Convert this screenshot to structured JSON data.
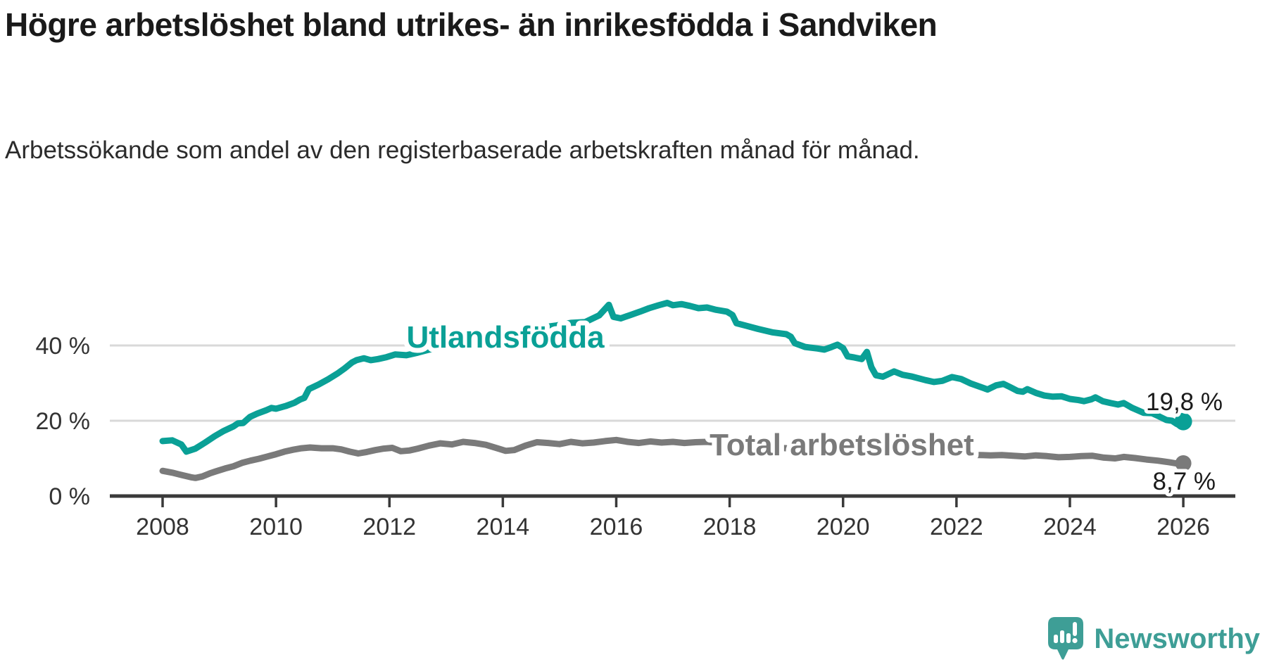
{
  "header": {
    "title": "Högre arbetslöshet bland utrikes- än inrikesfödda i Sandviken",
    "subtitle": "Arbetssökande som andel av den registerbaserade arbetskraften månad för månad."
  },
  "colors": {
    "background": "#FFFFFF",
    "accent_teal": "#0AA096",
    "series_gray": "#7A7A7A",
    "gridline": "#D9D9D9",
    "axis": "#3A3A3A",
    "text_dark": "#1A1A1A",
    "logo_teal": "#3E9E96"
  },
  "chart_data": {
    "type": "line",
    "title": "Högre arbetslöshet bland utrikes- än inrikesfödda i Sandviken",
    "subtitle": "Arbetssökande som andel av den registerbaserade arbetskraften månad för månad.",
    "xlabel": "",
    "ylabel": "",
    "x_axis": {
      "ticks": [
        2008,
        2010,
        2012,
        2014,
        2016,
        2018,
        2020,
        2022,
        2024,
        2026
      ],
      "tick_labels": [
        "2008",
        "2010",
        "2012",
        "2014",
        "2016",
        "2018",
        "2020",
        "2022",
        "2024",
        "2026"
      ],
      "range": [
        2007.1,
        2026.9
      ]
    },
    "y_axis": {
      "ticks": [
        0,
        20,
        40
      ],
      "tick_labels": [
        "0 %",
        "20 %",
        "40 %"
      ],
      "gridlines": [
        20,
        40
      ],
      "range": [
        0,
        56
      ],
      "unit": "%"
    },
    "legend_position": "inline-labels",
    "grid": "horizontal-only",
    "series": [
      {
        "name": "Utlandsfödda",
        "color": "#0AA096",
        "end_value": 19.8,
        "end_label": "19,8 %",
        "points": [
          [
            2008.0,
            14.6
          ],
          [
            2008.17,
            14.8
          ],
          [
            2008.33,
            13.7
          ],
          [
            2008.42,
            11.8
          ],
          [
            2008.58,
            12.6
          ],
          [
            2008.75,
            14.2
          ],
          [
            2008.92,
            15.9
          ],
          [
            2009.08,
            17.3
          ],
          [
            2009.25,
            18.5
          ],
          [
            2009.33,
            19.3
          ],
          [
            2009.42,
            19.4
          ],
          [
            2009.54,
            21.0
          ],
          [
            2009.67,
            21.9
          ],
          [
            2009.83,
            22.8
          ],
          [
            2009.92,
            23.4
          ],
          [
            2010.0,
            23.2
          ],
          [
            2010.17,
            23.9
          ],
          [
            2010.33,
            24.8
          ],
          [
            2010.42,
            25.6
          ],
          [
            2010.5,
            26.1
          ],
          [
            2010.58,
            28.4
          ],
          [
            2010.75,
            29.6
          ],
          [
            2010.92,
            31.0
          ],
          [
            2011.08,
            32.5
          ],
          [
            2011.21,
            33.9
          ],
          [
            2011.34,
            35.5
          ],
          [
            2011.42,
            36.1
          ],
          [
            2011.55,
            36.6
          ],
          [
            2011.67,
            36.1
          ],
          [
            2011.8,
            36.4
          ],
          [
            2011.95,
            36.9
          ],
          [
            2012.1,
            37.6
          ],
          [
            2012.3,
            37.4
          ],
          [
            2012.5,
            38.1
          ],
          [
            2012.7,
            38.9
          ],
          [
            2012.95,
            39.6
          ],
          [
            2013.2,
            40.3
          ],
          [
            2013.45,
            41.0
          ],
          [
            2013.7,
            41.9
          ],
          [
            2013.95,
            42.8
          ],
          [
            2014.2,
            43.6
          ],
          [
            2014.45,
            44.2
          ],
          [
            2014.7,
            44.8
          ],
          [
            2014.95,
            45.3
          ],
          [
            2015.2,
            46.0
          ],
          [
            2015.45,
            46.2
          ],
          [
            2015.7,
            48.0
          ],
          [
            2015.87,
            50.8
          ],
          [
            2015.95,
            47.6
          ],
          [
            2016.08,
            47.2
          ],
          [
            2016.25,
            48.1
          ],
          [
            2016.42,
            49.0
          ],
          [
            2016.58,
            49.9
          ],
          [
            2016.75,
            50.7
          ],
          [
            2016.9,
            51.3
          ],
          [
            2017.0,
            50.7
          ],
          [
            2017.15,
            51.0
          ],
          [
            2017.3,
            50.5
          ],
          [
            2017.45,
            49.9
          ],
          [
            2017.6,
            50.1
          ],
          [
            2017.75,
            49.5
          ],
          [
            2017.95,
            49.0
          ],
          [
            2018.05,
            48.1
          ],
          [
            2018.12,
            45.9
          ],
          [
            2018.3,
            45.2
          ],
          [
            2018.5,
            44.4
          ],
          [
            2018.75,
            43.5
          ],
          [
            2019.0,
            43.0
          ],
          [
            2019.08,
            42.3
          ],
          [
            2019.15,
            40.6
          ],
          [
            2019.33,
            39.6
          ],
          [
            2019.55,
            39.2
          ],
          [
            2019.67,
            38.9
          ],
          [
            2019.8,
            39.6
          ],
          [
            2019.9,
            40.2
          ],
          [
            2020.0,
            39.3
          ],
          [
            2020.08,
            37.1
          ],
          [
            2020.2,
            36.8
          ],
          [
            2020.33,
            36.4
          ],
          [
            2020.42,
            38.3
          ],
          [
            2020.5,
            34.2
          ],
          [
            2020.58,
            32.1
          ],
          [
            2020.7,
            31.7
          ],
          [
            2020.9,
            33.1
          ],
          [
            2021.05,
            32.2
          ],
          [
            2021.2,
            31.8
          ],
          [
            2021.45,
            30.8
          ],
          [
            2021.6,
            30.3
          ],
          [
            2021.75,
            30.6
          ],
          [
            2021.92,
            31.6
          ],
          [
            2022.08,
            31.1
          ],
          [
            2022.25,
            29.9
          ],
          [
            2022.42,
            29.0
          ],
          [
            2022.55,
            28.3
          ],
          [
            2022.7,
            29.4
          ],
          [
            2022.83,
            29.8
          ],
          [
            2022.95,
            28.9
          ],
          [
            2023.08,
            27.9
          ],
          [
            2023.17,
            27.7
          ],
          [
            2023.25,
            28.4
          ],
          [
            2023.4,
            27.4
          ],
          [
            2023.55,
            26.7
          ],
          [
            2023.7,
            26.4
          ],
          [
            2023.85,
            26.5
          ],
          [
            2024.0,
            25.8
          ],
          [
            2024.15,
            25.5
          ],
          [
            2024.25,
            25.2
          ],
          [
            2024.38,
            25.7
          ],
          [
            2024.45,
            26.2
          ],
          [
            2024.58,
            25.2
          ],
          [
            2024.72,
            24.7
          ],
          [
            2024.85,
            24.3
          ],
          [
            2024.95,
            24.7
          ],
          [
            2025.1,
            23.4
          ],
          [
            2025.3,
            22.1
          ],
          [
            2025.45,
            22.0
          ],
          [
            2025.58,
            21.1
          ],
          [
            2025.7,
            20.2
          ],
          [
            2025.8,
            20.0
          ],
          [
            2025.88,
            19.2
          ],
          [
            2025.95,
            18.7
          ],
          [
            2026.0,
            19.8
          ]
        ]
      },
      {
        "name": "Total arbetslöshet",
        "color": "#7A7A7A",
        "end_value": 8.7,
        "end_label": "8,7 %",
        "points": [
          [
            2008.0,
            6.7
          ],
          [
            2008.17,
            6.2
          ],
          [
            2008.33,
            5.6
          ],
          [
            2008.5,
            5.0
          ],
          [
            2008.58,
            4.8
          ],
          [
            2008.7,
            5.2
          ],
          [
            2008.83,
            6.0
          ],
          [
            2008.95,
            6.6
          ],
          [
            2009.1,
            7.3
          ],
          [
            2009.25,
            7.9
          ],
          [
            2009.4,
            8.8
          ],
          [
            2009.55,
            9.4
          ],
          [
            2009.7,
            9.9
          ],
          [
            2009.85,
            10.5
          ],
          [
            2010.0,
            11.1
          ],
          [
            2010.15,
            11.8
          ],
          [
            2010.3,
            12.3
          ],
          [
            2010.45,
            12.7
          ],
          [
            2010.6,
            12.9
          ],
          [
            2010.8,
            12.7
          ],
          [
            2011.0,
            12.7
          ],
          [
            2011.15,
            12.4
          ],
          [
            2011.3,
            11.8
          ],
          [
            2011.45,
            11.3
          ],
          [
            2011.6,
            11.7
          ],
          [
            2011.75,
            12.2
          ],
          [
            2011.9,
            12.6
          ],
          [
            2012.05,
            12.8
          ],
          [
            2012.2,
            11.9
          ],
          [
            2012.35,
            12.1
          ],
          [
            2012.5,
            12.6
          ],
          [
            2012.7,
            13.4
          ],
          [
            2012.9,
            14.0
          ],
          [
            2013.1,
            13.7
          ],
          [
            2013.3,
            14.4
          ],
          [
            2013.5,
            14.1
          ],
          [
            2013.7,
            13.6
          ],
          [
            2013.9,
            12.7
          ],
          [
            2014.05,
            12.0
          ],
          [
            2014.2,
            12.2
          ],
          [
            2014.4,
            13.4
          ],
          [
            2014.6,
            14.3
          ],
          [
            2014.8,
            14.1
          ],
          [
            2015.0,
            13.8
          ],
          [
            2015.2,
            14.4
          ],
          [
            2015.4,
            14.0
          ],
          [
            2015.6,
            14.2
          ],
          [
            2015.8,
            14.6
          ],
          [
            2016.0,
            14.9
          ],
          [
            2016.2,
            14.4
          ],
          [
            2016.4,
            14.1
          ],
          [
            2016.6,
            14.5
          ],
          [
            2016.8,
            14.2
          ],
          [
            2017.0,
            14.4
          ],
          [
            2017.2,
            14.1
          ],
          [
            2017.4,
            14.3
          ],
          [
            2017.6,
            14.4
          ],
          [
            2017.9,
            14.0
          ],
          [
            2018.2,
            13.6
          ],
          [
            2018.5,
            13.2
          ],
          [
            2018.8,
            12.9
          ],
          [
            2019.1,
            12.6
          ],
          [
            2019.4,
            12.3
          ],
          [
            2019.7,
            12.1
          ],
          [
            2020.0,
            12.0
          ],
          [
            2020.4,
            12.4
          ],
          [
            2020.7,
            12.2
          ],
          [
            2021.0,
            11.9
          ],
          [
            2021.4,
            11.5
          ],
          [
            2021.8,
            11.2
          ],
          [
            2022.1,
            11.0
          ],
          [
            2022.4,
            10.9
          ],
          [
            2022.6,
            10.8
          ],
          [
            2022.8,
            10.9
          ],
          [
            2023.0,
            10.7
          ],
          [
            2023.2,
            10.5
          ],
          [
            2023.4,
            10.8
          ],
          [
            2023.6,
            10.6
          ],
          [
            2023.8,
            10.3
          ],
          [
            2024.0,
            10.4
          ],
          [
            2024.2,
            10.6
          ],
          [
            2024.4,
            10.7
          ],
          [
            2024.6,
            10.2
          ],
          [
            2024.8,
            10.0
          ],
          [
            2024.95,
            10.4
          ],
          [
            2025.15,
            10.1
          ],
          [
            2025.35,
            9.7
          ],
          [
            2025.55,
            9.4
          ],
          [
            2025.75,
            9.0
          ],
          [
            2025.9,
            8.6
          ],
          [
            2026.0,
            8.7
          ]
        ]
      }
    ]
  },
  "logo": {
    "text": "Newsworthy",
    "icon": "newsworthy-speech-bubble-barchart-icon"
  }
}
